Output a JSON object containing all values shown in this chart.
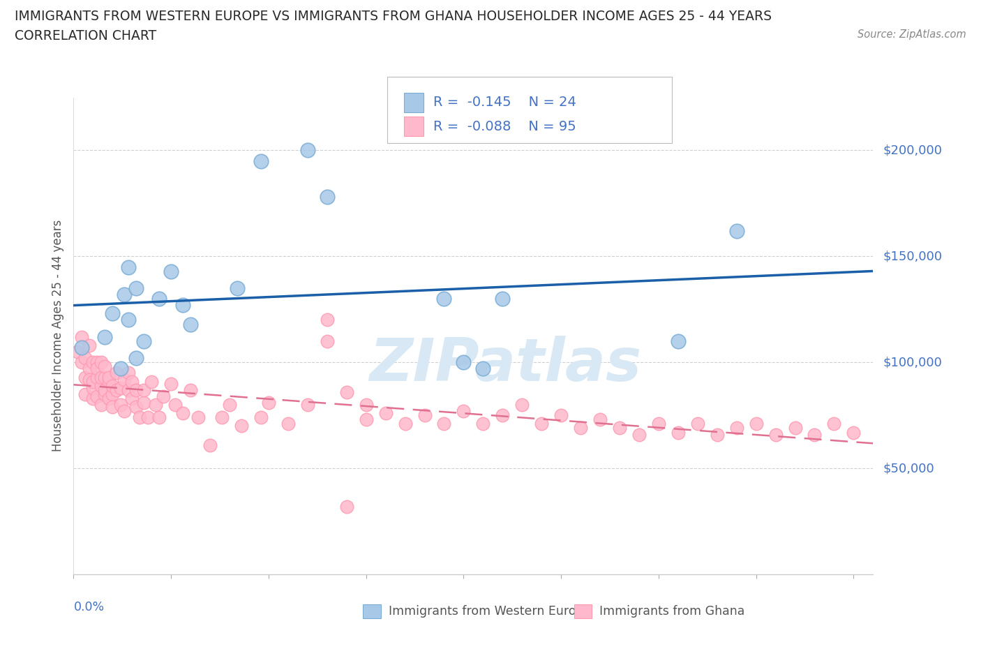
{
  "title_line1": "IMMIGRANTS FROM WESTERN EUROPE VS IMMIGRANTS FROM GHANA HOUSEHOLDER INCOME AGES 25 - 44 YEARS",
  "title_line2": "CORRELATION CHART",
  "source_text": "Source: ZipAtlas.com",
  "ylabel": "Householder Income Ages 25 - 44 years",
  "legend_label1": "Immigrants from Western Europe",
  "legend_label2": "Immigrants from Ghana",
  "R1": -0.145,
  "N1": 24,
  "R2": -0.088,
  "N2": 95,
  "color_blue_fill": "#A8C8E8",
  "color_blue_edge": "#7BADD4",
  "color_pink_fill": "#FFB8CC",
  "color_pink_edge": "#FF99B0",
  "color_trendline_blue": "#1A5FA8",
  "color_trendline_pink": "#E07090",
  "color_axis_labels": "#4472C4",
  "color_grid": "#BBBBBB",
  "watermark_color": "#D8E8F5",
  "xlim": [
    0.0,
    0.205
  ],
  "ylim": [
    0,
    225000
  ],
  "ytick_vals": [
    50000,
    100000,
    150000,
    200000
  ],
  "ytick_labels": [
    "$50,000",
    "$100,000",
    "$150,000",
    "$200,000"
  ],
  "xticks": [
    0.0,
    0.025,
    0.05,
    0.075,
    0.1,
    0.125,
    0.15,
    0.175,
    0.2
  ],
  "blue_x": [
    0.002,
    0.008,
    0.01,
    0.012,
    0.013,
    0.014,
    0.014,
    0.016,
    0.016,
    0.018,
    0.022,
    0.025,
    0.028,
    0.03,
    0.042,
    0.048,
    0.06,
    0.065,
    0.095,
    0.1,
    0.105,
    0.11,
    0.155,
    0.17
  ],
  "blue_y": [
    107000,
    112000,
    123000,
    97000,
    132000,
    145000,
    120000,
    135000,
    102000,
    110000,
    130000,
    143000,
    127000,
    118000,
    135000,
    195000,
    200000,
    178000,
    130000,
    100000,
    97000,
    130000,
    110000,
    162000
  ],
  "pink_x": [
    0.001,
    0.002,
    0.002,
    0.003,
    0.003,
    0.003,
    0.004,
    0.004,
    0.004,
    0.005,
    0.005,
    0.005,
    0.005,
    0.006,
    0.006,
    0.006,
    0.006,
    0.007,
    0.007,
    0.007,
    0.007,
    0.008,
    0.008,
    0.008,
    0.008,
    0.009,
    0.009,
    0.009,
    0.01,
    0.01,
    0.01,
    0.011,
    0.011,
    0.012,
    0.012,
    0.013,
    0.013,
    0.014,
    0.014,
    0.015,
    0.015,
    0.016,
    0.016,
    0.017,
    0.018,
    0.018,
    0.019,
    0.02,
    0.021,
    0.022,
    0.023,
    0.025,
    0.026,
    0.028,
    0.03,
    0.032,
    0.035,
    0.038,
    0.04,
    0.043,
    0.048,
    0.05,
    0.055,
    0.06,
    0.065,
    0.07,
    0.075,
    0.08,
    0.085,
    0.09,
    0.095,
    0.1,
    0.105,
    0.11,
    0.115,
    0.12,
    0.125,
    0.13,
    0.135,
    0.14,
    0.145,
    0.15,
    0.155,
    0.16,
    0.165,
    0.17,
    0.175,
    0.18,
    0.185,
    0.19,
    0.195,
    0.2,
    0.065,
    0.07,
    0.075
  ],
  "pink_y": [
    105000,
    100000,
    112000,
    102000,
    93000,
    85000,
    97000,
    108000,
    92000,
    83000,
    100000,
    88000,
    91000,
    100000,
    84000,
    93000,
    97000,
    89000,
    80000,
    93000,
    100000,
    85000,
    93000,
    98000,
    87000,
    91000,
    83000,
    93000,
    85000,
    89000,
    79000,
    87000,
    95000,
    88000,
    80000,
    92000,
    77000,
    87000,
    95000,
    83000,
    91000,
    87000,
    79000,
    74000,
    81000,
    87000,
    74000,
    91000,
    80000,
    74000,
    84000,
    90000,
    80000,
    76000,
    87000,
    74000,
    61000,
    74000,
    80000,
    70000,
    74000,
    81000,
    71000,
    80000,
    120000,
    32000,
    73000,
    76000,
    71000,
    75000,
    71000,
    77000,
    71000,
    75000,
    80000,
    71000,
    75000,
    69000,
    73000,
    69000,
    66000,
    71000,
    67000,
    71000,
    66000,
    69000,
    71000,
    66000,
    69000,
    66000,
    71000,
    67000,
    110000,
    86000,
    80000
  ]
}
